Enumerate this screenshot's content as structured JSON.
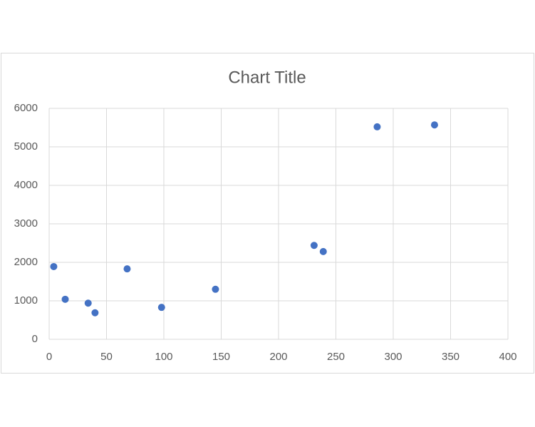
{
  "chart_data": {
    "type": "scatter",
    "title": "Chart Title",
    "x": [
      4,
      14,
      34,
      40,
      68,
      98,
      145,
      231,
      239,
      286,
      336
    ],
    "values": [
      1890,
      1040,
      940,
      690,
      1830,
      830,
      1300,
      2440,
      2280,
      5520,
      5570
    ],
    "color": "#4472c4",
    "xlim": [
      0,
      400
    ],
    "xticks": [
      0,
      50,
      100,
      150,
      200,
      250,
      300,
      350,
      400
    ],
    "ylim": [
      0,
      6000
    ],
    "yticks": [
      0,
      1000,
      2000,
      3000,
      4000,
      5000,
      6000
    ],
    "grid": true
  }
}
